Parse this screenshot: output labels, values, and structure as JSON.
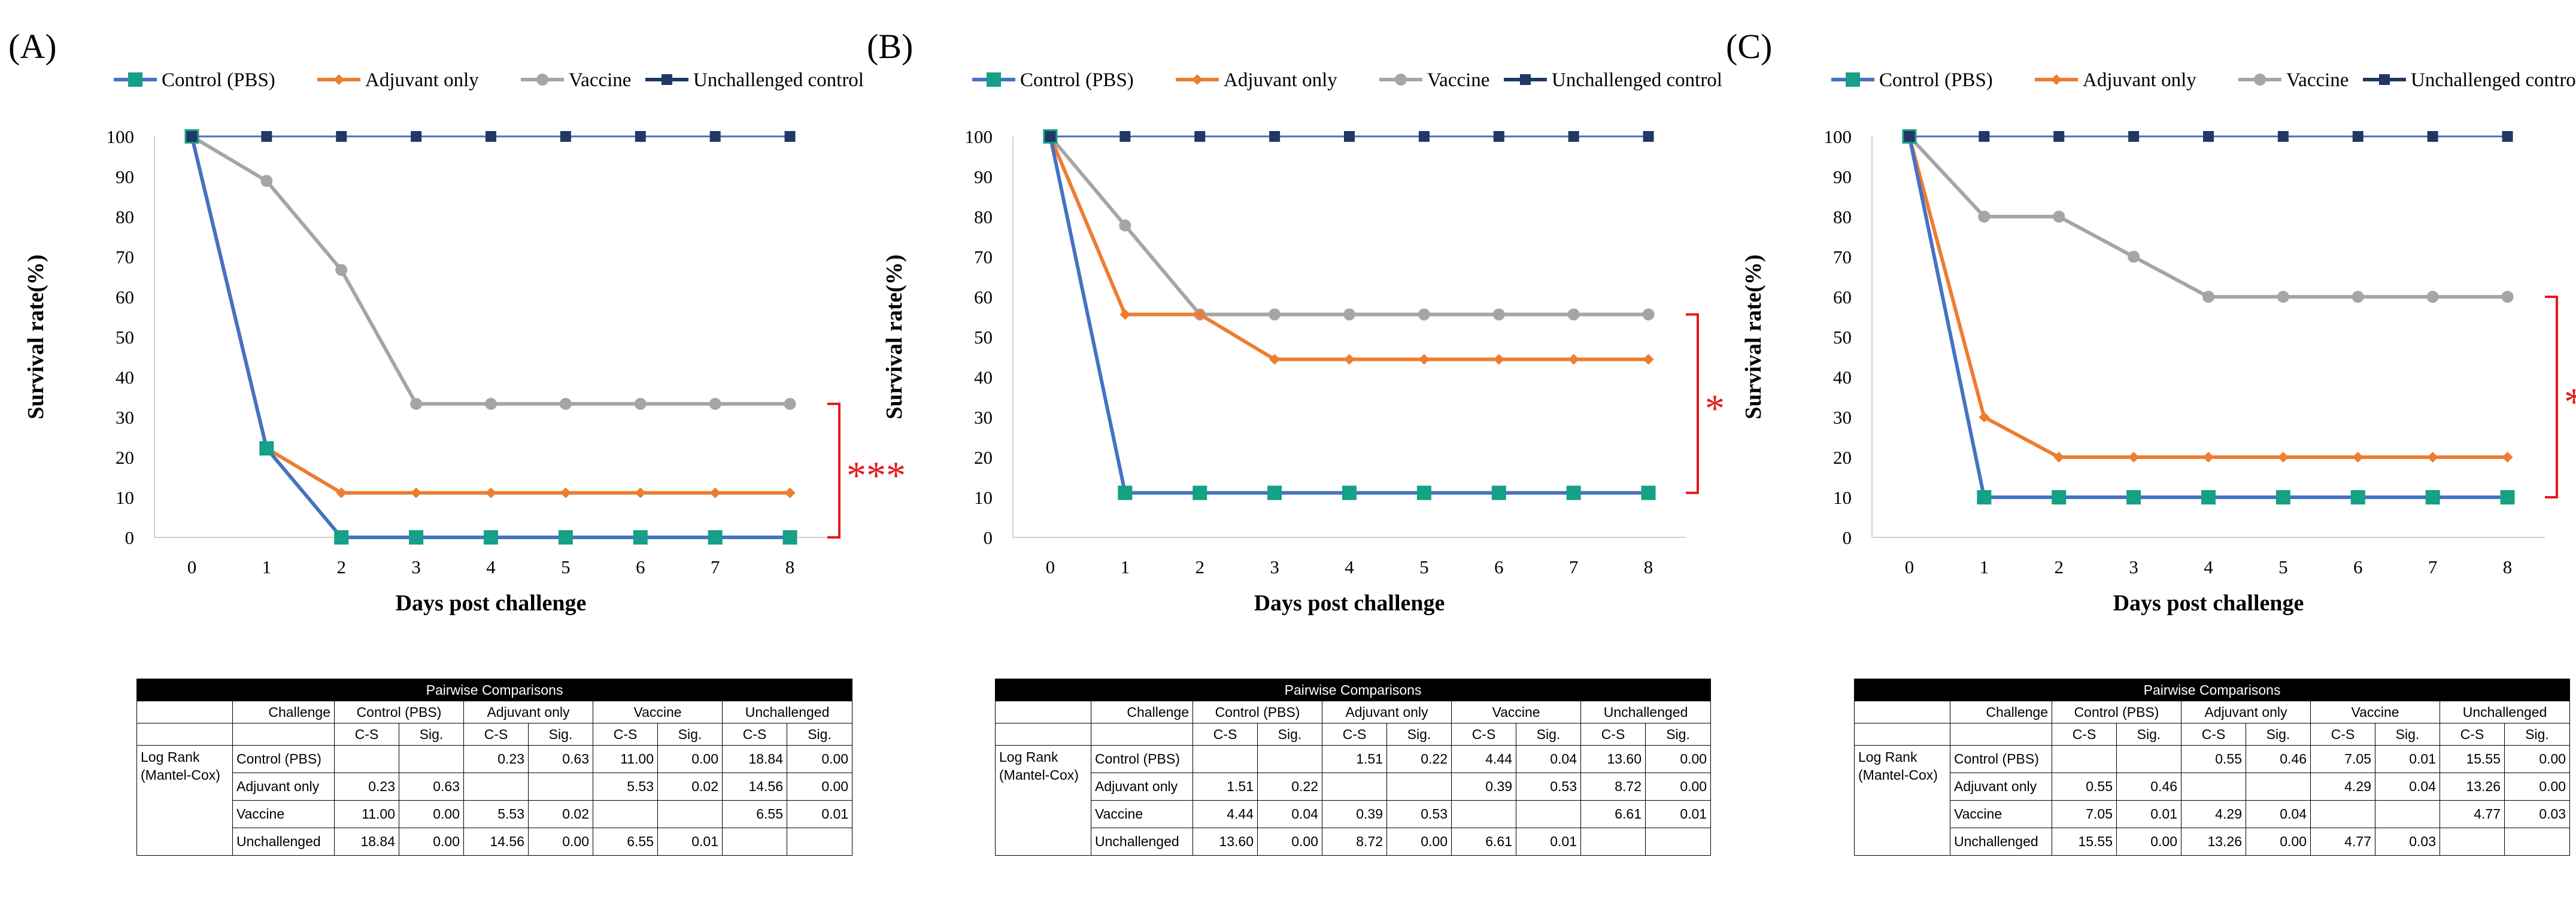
{
  "legend": [
    "Control (PBS)",
    "Adjuvant only",
    "Vaccine",
    "Unchallenged control"
  ],
  "colors": {
    "Control (PBS)": "#4472C4",
    "Adjuvant only": "#ED7D31",
    "Vaccine": "#A5A5A5",
    "Unchallenged control": "#203864",
    "pbs_marker": "#16A085",
    "sig": "#E31A1C"
  },
  "chart_data": [
    {
      "panel": "(A)",
      "type": "line",
      "title": "",
      "xlabel": "Days post challenge",
      "ylabel": "Survival rate(%)",
      "x": [
        0,
        1,
        2,
        3,
        4,
        5,
        6,
        7,
        8
      ],
      "ylim": [
        0,
        100
      ],
      "yticks": [
        0,
        10,
        20,
        30,
        40,
        50,
        60,
        70,
        80,
        90,
        100
      ],
      "series": [
        {
          "name": "Control (PBS)",
          "values": [
            100,
            22.2,
            0,
            0,
            0,
            0,
            0,
            0,
            0
          ]
        },
        {
          "name": "Adjuvant only",
          "values": [
            100,
            22.2,
            11.1,
            11.1,
            11.1,
            11.1,
            11.1,
            11.1,
            11.1
          ]
        },
        {
          "name": "Vaccine",
          "values": [
            100,
            88.9,
            66.7,
            33.3,
            33.3,
            33.3,
            33.3,
            33.3,
            33.3
          ]
        },
        {
          "name": "Unchallenged control",
          "values": [
            100,
            100,
            100,
            100,
            100,
            100,
            100,
            100,
            100
          ]
        }
      ],
      "significance": {
        "label": "***",
        "from": 0,
        "to": 33.3
      },
      "table": {
        "title": "Pairwise Comparisons",
        "challenge_label": "Challenge",
        "columns": [
          "Control (PBS)",
          "Adjuvant only",
          "Vaccine",
          "Unchallenged"
        ],
        "sub": [
          "C-S",
          "Sig."
        ],
        "row_header": "Log Rank (Mantel-Cox)",
        "rows": [
          {
            "label": "Control (PBS)",
            "cells": [
              "",
              "",
              "0.23",
              "0.63",
              "11.00",
              "0.00",
              "18.84",
              "0.00"
            ]
          },
          {
            "label": "Adjuvant only",
            "cells": [
              "0.23",
              "0.63",
              "",
              "",
              "5.53",
              "0.02",
              "14.56",
              "0.00"
            ]
          },
          {
            "label": "Vaccine",
            "cells": [
              "11.00",
              "0.00",
              "5.53",
              "0.02",
              "",
              "",
              "6.55",
              "0.01"
            ]
          },
          {
            "label": "Unchallenged",
            "cells": [
              "18.84",
              "0.00",
              "14.56",
              "0.00",
              "6.55",
              "0.01",
              "",
              ""
            ]
          }
        ]
      }
    },
    {
      "panel": "(B)",
      "type": "line",
      "title": "",
      "xlabel": "Days post challenge",
      "ylabel": "Survival rate(%)",
      "x": [
        0,
        1,
        2,
        3,
        4,
        5,
        6,
        7,
        8
      ],
      "ylim": [
        0,
        100
      ],
      "yticks": [
        0,
        10,
        20,
        30,
        40,
        50,
        60,
        70,
        80,
        90,
        100
      ],
      "series": [
        {
          "name": "Control (PBS)",
          "values": [
            100,
            11.1,
            11.1,
            11.1,
            11.1,
            11.1,
            11.1,
            11.1,
            11.1
          ]
        },
        {
          "name": "Adjuvant only",
          "values": [
            100,
            55.6,
            55.6,
            44.4,
            44.4,
            44.4,
            44.4,
            44.4,
            44.4
          ]
        },
        {
          "name": "Vaccine",
          "values": [
            100,
            77.8,
            55.6,
            55.6,
            55.6,
            55.6,
            55.6,
            55.6,
            55.6
          ]
        },
        {
          "name": "Unchallenged control",
          "values": [
            100,
            100,
            100,
            100,
            100,
            100,
            100,
            100,
            100
          ]
        }
      ],
      "significance": {
        "label": "*",
        "from": 11.1,
        "to": 55.6
      },
      "table": {
        "title": "Pairwise Comparisons",
        "challenge_label": "Challenge",
        "columns": [
          "Control (PBS)",
          "Adjuvant only",
          "Vaccine",
          "Unchallenged"
        ],
        "sub": [
          "C-S",
          "Sig."
        ],
        "row_header": "Log Rank (Mantel-Cox)",
        "rows": [
          {
            "label": "Control (PBS)",
            "cells": [
              "",
              "",
              "1.51",
              "0.22",
              "4.44",
              "0.04",
              "13.60",
              "0.00"
            ]
          },
          {
            "label": "Adjuvant only",
            "cells": [
              "1.51",
              "0.22",
              "",
              "",
              "0.39",
              "0.53",
              "8.72",
              "0.00"
            ]
          },
          {
            "label": "Vaccine",
            "cells": [
              "4.44",
              "0.04",
              "0.39",
              "0.53",
              "",
              "",
              "6.61",
              "0.01"
            ]
          },
          {
            "label": "Unchallenged",
            "cells": [
              "13.60",
              "0.00",
              "8.72",
              "0.00",
              "6.61",
              "0.01",
              "",
              ""
            ]
          }
        ]
      }
    },
    {
      "panel": "(C)",
      "type": "line",
      "title": "",
      "xlabel": "Days post challenge",
      "ylabel": "Survival rate(%)",
      "x": [
        0,
        1,
        2,
        3,
        4,
        5,
        6,
        7,
        8
      ],
      "ylim": [
        0,
        100
      ],
      "yticks": [
        0,
        10,
        20,
        30,
        40,
        50,
        60,
        70,
        80,
        90,
        100
      ],
      "series": [
        {
          "name": "Control (PBS)",
          "values": [
            100,
            10,
            10,
            10,
            10,
            10,
            10,
            10,
            10
          ]
        },
        {
          "name": "Adjuvant only",
          "values": [
            100,
            30,
            20,
            20,
            20,
            20,
            20,
            20,
            20
          ]
        },
        {
          "name": "Vaccine",
          "values": [
            100,
            80,
            80,
            70,
            60,
            60,
            60,
            60,
            60
          ]
        },
        {
          "name": "Unchallenged control",
          "values": [
            100,
            100,
            100,
            100,
            100,
            100,
            100,
            100,
            100
          ]
        }
      ],
      "significance": {
        "label": "**",
        "from": 10,
        "to": 60
      },
      "table": {
        "title": "Pairwise Comparisons",
        "challenge_label": "Challenge",
        "columns": [
          "Control (PBS)",
          "Adjuvant only",
          "Vaccine",
          "Unchallenged"
        ],
        "sub": [
          "C-S",
          "Sig."
        ],
        "row_header": "Log Rank (Mantel-Cox)",
        "rows": [
          {
            "label": "Control (PBS)",
            "cells": [
              "",
              "",
              "0.55",
              "0.46",
              "7.05",
              "0.01",
              "15.55",
              "0.00"
            ]
          },
          {
            "label": "Adjuvant only",
            "cells": [
              "0.55",
              "0.46",
              "",
              "",
              "4.29",
              "0.04",
              "13.26",
              "0.00"
            ]
          },
          {
            "label": "Vaccine",
            "cells": [
              "7.05",
              "0.01",
              "4.29",
              "0.04",
              "",
              "",
              "4.77",
              "0.03"
            ]
          },
          {
            "label": "Unchallenged",
            "cells": [
              "15.55",
              "0.00",
              "13.26",
              "0.00",
              "4.77",
              "0.03",
              "",
              ""
            ]
          }
        ]
      }
    }
  ]
}
